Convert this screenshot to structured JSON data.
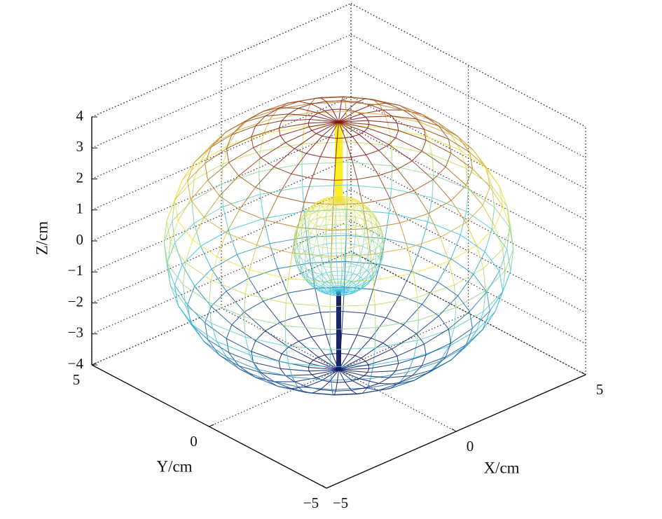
{
  "chart_data": {
    "type": "surface3d",
    "xlabel": "X/cm",
    "ylabel": "Y/cm",
    "zlabel": "Z/cm",
    "xlim": [
      -5,
      5
    ],
    "ylim": [
      -5,
      5
    ],
    "zlim": [
      -4,
      4
    ],
    "xticks": [
      {
        "value": -5,
        "label": "−5"
      },
      0,
      5
    ],
    "yticks": [
      {
        "value": -5,
        "label": "−5"
      },
      0,
      5
    ],
    "zticks": [
      {
        "value": -4,
        "label": "−4"
      },
      {
        "value": -3,
        "label": "−3"
      },
      {
        "value": -2,
        "label": "−2"
      },
      {
        "value": -1,
        "label": "−1"
      },
      0,
      1,
      2,
      3,
      4
    ],
    "grid": true,
    "colormap": [
      "#0b1560",
      "#3cc6e6",
      "#f2e640",
      "#7a0e0e"
    ],
    "surfaces": [
      {
        "center": [
          0,
          0,
          0
        ],
        "radii": [
          5,
          5,
          4
        ]
      },
      {
        "center": [
          0,
          0,
          0
        ],
        "radii": [
          1.3,
          1.3,
          1.45
        ]
      }
    ],
    "rods": [
      {
        "z": [
          1.45,
          4
        ],
        "color": "#ffee22"
      },
      {
        "z": [
          -4,
          -1.45
        ],
        "color": "#1a2466"
      }
    ]
  }
}
